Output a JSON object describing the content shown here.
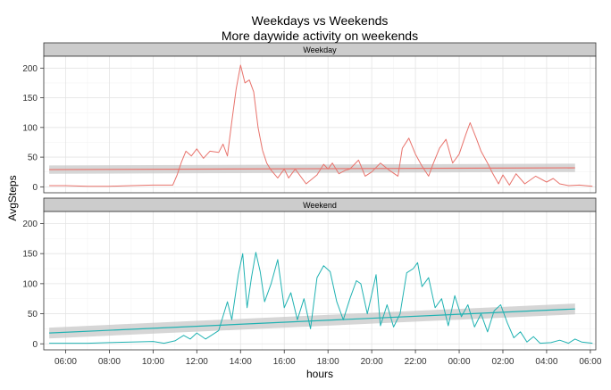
{
  "chart_data": {
    "type": "line",
    "title": "Weekdays vs Weekends",
    "subtitle": "More daywide activity on weekends",
    "xlabel": "hours",
    "ylabel": "AvgSteps",
    "xlim": [
      5.0,
      30.25
    ],
    "ylim": [
      -10,
      220
    ],
    "x_ticks": [
      6,
      8,
      10,
      12,
      14,
      16,
      18,
      20,
      22,
      24,
      26,
      28,
      30
    ],
    "x_tick_labels": [
      "06:00",
      "08:00",
      "10:00",
      "12:00",
      "14:00",
      "16:00",
      "18:00",
      "20:00",
      "22:00",
      "00:00",
      "02:00",
      "04:00",
      "06:00"
    ],
    "y_ticks": [
      0,
      50,
      100,
      150,
      200
    ],
    "y_tick_labels": [
      "0",
      "50",
      "100",
      "150",
      "200"
    ],
    "grid": true,
    "panels": [
      {
        "strip_label": "Weekday",
        "color": "#e8736c",
        "smooth": {
          "y_start": 29,
          "y_end": 32,
          "se_half_width": 7
        },
        "series_points": [
          [
            5.25,
            2
          ],
          [
            6,
            2
          ],
          [
            7,
            1
          ],
          [
            8,
            1
          ],
          [
            9,
            2
          ],
          [
            10,
            3
          ],
          [
            10.9,
            3
          ],
          [
            11.1,
            20
          ],
          [
            11.3,
            42
          ],
          [
            11.5,
            60
          ],
          [
            11.75,
            52
          ],
          [
            12,
            64
          ],
          [
            12.3,
            48
          ],
          [
            12.6,
            60
          ],
          [
            13,
            58
          ],
          [
            13.2,
            72
          ],
          [
            13.4,
            52
          ],
          [
            13.6,
            110
          ],
          [
            13.8,
            165
          ],
          [
            14,
            205
          ],
          [
            14.2,
            175
          ],
          [
            14.4,
            180
          ],
          [
            14.6,
            160
          ],
          [
            14.8,
            100
          ],
          [
            15,
            62
          ],
          [
            15.2,
            40
          ],
          [
            15.4,
            28
          ],
          [
            15.7,
            15
          ],
          [
            16,
            30
          ],
          [
            16.2,
            15
          ],
          [
            16.5,
            30
          ],
          [
            17,
            5
          ],
          [
            17.5,
            20
          ],
          [
            17.8,
            38
          ],
          [
            18,
            30
          ],
          [
            18.2,
            40
          ],
          [
            18.5,
            22
          ],
          [
            18.8,
            28
          ],
          [
            19,
            30
          ],
          [
            19.4,
            45
          ],
          [
            19.7,
            18
          ],
          [
            20,
            25
          ],
          [
            20.4,
            40
          ],
          [
            20.8,
            28
          ],
          [
            21.2,
            18
          ],
          [
            21.4,
            65
          ],
          [
            21.7,
            82
          ],
          [
            22,
            55
          ],
          [
            22.3,
            35
          ],
          [
            22.6,
            18
          ],
          [
            22.8,
            38
          ],
          [
            23.1,
            65
          ],
          [
            23.4,
            80
          ],
          [
            23.7,
            40
          ],
          [
            24,
            55
          ],
          [
            24.3,
            88
          ],
          [
            24.5,
            108
          ],
          [
            24.8,
            80
          ],
          [
            25,
            60
          ],
          [
            25.3,
            40
          ],
          [
            25.5,
            25
          ],
          [
            25.8,
            5
          ],
          [
            26,
            20
          ],
          [
            26.3,
            3
          ],
          [
            26.6,
            22
          ],
          [
            27,
            5
          ],
          [
            27.5,
            18
          ],
          [
            28,
            8
          ],
          [
            28.3,
            14
          ],
          [
            28.6,
            5
          ],
          [
            29,
            2
          ],
          [
            29.5,
            3
          ],
          [
            30.1,
            1
          ]
        ]
      },
      {
        "strip_label": "Weekend",
        "color": "#20b2b2",
        "smooth": {
          "y_start": 18,
          "y_end": 58,
          "se_half_width": 9
        },
        "series_points": [
          [
            5.25,
            1
          ],
          [
            6,
            1
          ],
          [
            7,
            1
          ],
          [
            8,
            2
          ],
          [
            9,
            3
          ],
          [
            10,
            4
          ],
          [
            10.5,
            1
          ],
          [
            11,
            5
          ],
          [
            11.4,
            14
          ],
          [
            11.7,
            8
          ],
          [
            12,
            18
          ],
          [
            12.4,
            8
          ],
          [
            12.7,
            15
          ],
          [
            13,
            22
          ],
          [
            13.4,
            70
          ],
          [
            13.6,
            40
          ],
          [
            13.9,
            115
          ],
          [
            14.1,
            150
          ],
          [
            14.3,
            60
          ],
          [
            14.5,
            110
          ],
          [
            14.7,
            152
          ],
          [
            14.9,
            120
          ],
          [
            15.1,
            70
          ],
          [
            15.4,
            100
          ],
          [
            15.7,
            140
          ],
          [
            16,
            60
          ],
          [
            16.3,
            85
          ],
          [
            16.6,
            40
          ],
          [
            16.9,
            75
          ],
          [
            17.2,
            25
          ],
          [
            17.5,
            110
          ],
          [
            17.8,
            130
          ],
          [
            18.1,
            120
          ],
          [
            18.4,
            70
          ],
          [
            18.7,
            40
          ],
          [
            19,
            75
          ],
          [
            19.3,
            105
          ],
          [
            19.5,
            100
          ],
          [
            19.8,
            50
          ],
          [
            20,
            82
          ],
          [
            20.2,
            115
          ],
          [
            20.4,
            30
          ],
          [
            20.7,
            65
          ],
          [
            21,
            28
          ],
          [
            21.3,
            50
          ],
          [
            21.6,
            118
          ],
          [
            21.9,
            125
          ],
          [
            22.1,
            135
          ],
          [
            22.3,
            95
          ],
          [
            22.6,
            110
          ],
          [
            22.9,
            60
          ],
          [
            23.2,
            75
          ],
          [
            23.5,
            30
          ],
          [
            23.8,
            80
          ],
          [
            24.1,
            45
          ],
          [
            24.4,
            65
          ],
          [
            24.7,
            28
          ],
          [
            25,
            50
          ],
          [
            25.3,
            20
          ],
          [
            25.6,
            55
          ],
          [
            25.9,
            65
          ],
          [
            26.2,
            35
          ],
          [
            26.5,
            10
          ],
          [
            26.8,
            20
          ],
          [
            27.1,
            3
          ],
          [
            27.4,
            12
          ],
          [
            27.7,
            1
          ],
          [
            28.2,
            2
          ],
          [
            28.6,
            6
          ],
          [
            29,
            1
          ],
          [
            29.3,
            8
          ],
          [
            29.6,
            3
          ],
          [
            30.1,
            1
          ]
        ]
      }
    ]
  }
}
